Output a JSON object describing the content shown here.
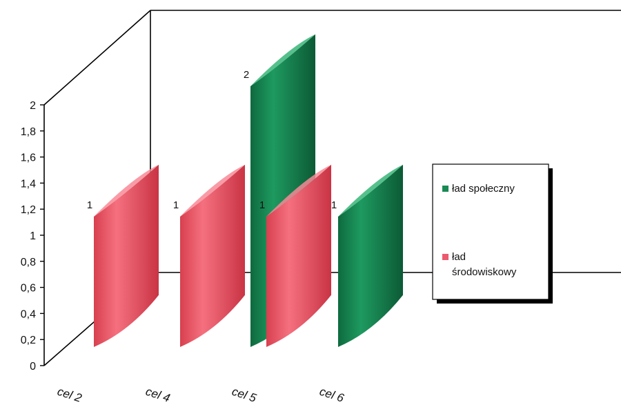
{
  "chart_data": {
    "type": "bar",
    "style": "3d-cylinder",
    "categories": [
      "cel 2",
      "cel 4",
      "cel 5",
      "cel 6"
    ],
    "series": [
      {
        "name": "ład społeczny",
        "color": "#1a8a55",
        "values": [
          null,
          null,
          2,
          1
        ]
      },
      {
        "name": "ład środowiskowy",
        "color": "#ec5a6e",
        "values": [
          1,
          1,
          1,
          null
        ]
      }
    ],
    "y_ticks": [
      "0",
      "0,2",
      "0,4",
      "0,6",
      "0,8",
      "1",
      "1,2",
      "1,4",
      "1,6",
      "1,8",
      "2"
    ],
    "ylim": [
      0,
      2
    ],
    "legend": {
      "position": "right",
      "items": [
        {
          "label_lines": [
            "ład społeczny"
          ],
          "color": "#1a8a55"
        },
        {
          "label_lines": [
            "ład",
            "środowiskowy"
          ],
          "color": "#ec5a6e"
        }
      ]
    },
    "grid": false
  }
}
